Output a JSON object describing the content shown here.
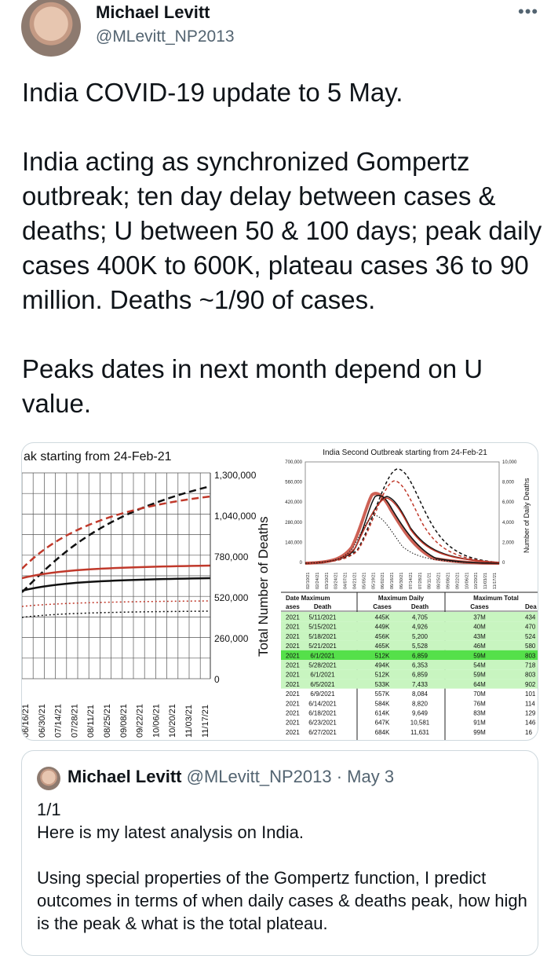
{
  "author": {
    "name": "Michael Levitt",
    "handle": "@MLevitt_NP2013",
    "more_icon": "more-icon"
  },
  "tweet": {
    "line1": "India COVID-19 update to 5 May.",
    "para2": "India acting as synchronized Gompertz outbreak; ten day delay between cases & deaths; U between 50 & 100 days; peak daily cases 400K to 600K, plateau cases 36 to 90 million. Deaths ~1/90 of cases.",
    "para3": "Peaks dates in next month depend on U value."
  },
  "media": {
    "left_chart": {
      "title": "ak starting from 24-Feb-21",
      "y_axis_label": "Total Number of Deaths",
      "y_ticks": [
        "1,300,000",
        "1,040,000",
        "780,000",
        "520,000",
        "260,000",
        "0"
      ],
      "x_ticks": [
        "06/16/21",
        "06/30/21",
        "07/14/21",
        "07/28/21",
        "08/11/21",
        "08/25/21",
        "09/08/21",
        "09/22/21",
        "10/06/21",
        "10/20/21",
        "11/03/21",
        "11/17/21"
      ]
    },
    "right_chart": {
      "title": "India Second Outbreak starting from 24-Feb-21",
      "y_left_ticks": [
        "700,000",
        "560,000",
        "420,000",
        "280,000",
        "140,000",
        "0"
      ],
      "y_right_ticks": [
        "10,000",
        "8,000",
        "6,000",
        "4,000",
        "2,000",
        "0"
      ],
      "y_right_label": "Number of Daily Deaths",
      "x_ticks": [
        "02/10/21",
        "02/24/21",
        "03/10/21",
        "03/24/21",
        "04/07/21",
        "04/21/21",
        "05/05/21",
        "05/19/21",
        "06/02/21",
        "06/16/21",
        "06/30/21",
        "07/14/21",
        "07/28/21",
        "08/11/21",
        "08/25/21",
        "09/08/21",
        "09/22/21",
        "10/06/21",
        "10/20/21",
        "11/03/21",
        "11/17/21"
      ]
    },
    "table": {
      "group_headers": [
        "Date Maximum",
        "Maximum Daily",
        "Maximum Total"
      ],
      "sub_headers": [
        "ases",
        "Death",
        "Cases",
        "Death",
        "Cases",
        "Dea"
      ],
      "rows": [
        [
          "2021",
          "5/11/2021",
          "445K",
          "4,705",
          "37M",
          "434"
        ],
        [
          "2021",
          "5/15/2021",
          "449K",
          "4,926",
          "40M",
          "470"
        ],
        [
          "2021",
          "5/18/2021",
          "456K",
          "5,200",
          "43M",
          "524"
        ],
        [
          "2021",
          "5/21/2021",
          "465K",
          "5,528",
          "46M",
          "580"
        ],
        [
          "2021",
          "6/1/2021",
          "512K",
          "6,859",
          "59M",
          "803"
        ],
        [
          "2021",
          "5/28/2021",
          "494K",
          "6,353",
          "54M",
          "718"
        ],
        [
          "2021",
          "6/1/2021",
          "512K",
          "6,859",
          "59M",
          "803"
        ],
        [
          "2021",
          "6/5/2021",
          "533K",
          "7,433",
          "64M",
          "902"
        ],
        [
          "2021",
          "6/9/2021",
          "557K",
          "8,084",
          "70M",
          "101"
        ],
        [
          "2021",
          "6/14/2021",
          "584K",
          "8,820",
          "76M",
          "114"
        ],
        [
          "2021",
          "6/18/2021",
          "614K",
          "9,649",
          "83M",
          "129"
        ],
        [
          "2021",
          "6/23/2021",
          "647K",
          "10,581",
          "91M",
          "146"
        ],
        [
          "2021",
          "6/27/2021",
          "684K",
          "11,631",
          "99M",
          "16"
        ]
      ],
      "row_styles": [
        "light",
        "light",
        "light",
        "light",
        "highlight",
        "light",
        "light",
        "light",
        "none",
        "none",
        "none",
        "none",
        "none"
      ],
      "colors": {
        "light": "#c8f5c0",
        "highlight": "#55e04a"
      }
    }
  },
  "quote": {
    "name": "Michael Levitt",
    "handle": "@MLevitt_NP2013",
    "separator": "·",
    "date": "May 3",
    "line1": "1/1",
    "line2": "Here is my latest analysis on India.",
    "para2": "Using  special properties of the Gompertz function, I predict outcomes in terms of when daily cases & deaths peak, how high is the peak & what is the total plateau."
  }
}
